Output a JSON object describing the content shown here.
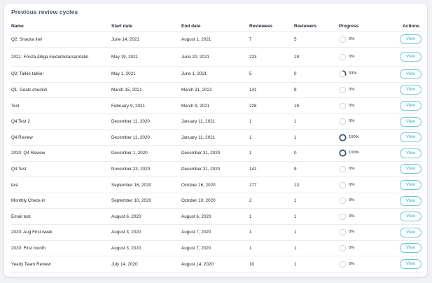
{
  "section": {
    "title": "Previous review cycles"
  },
  "columns": {
    "name": "Name",
    "start": "Start date",
    "end": "End date",
    "reviewees": "Reviewees",
    "reviewers": "Reviewers",
    "progress": "Progress",
    "actions": "Actions"
  },
  "view_label": "View",
  "colors": {
    "accent": "#3bb0c2",
    "ring_track": "#d5d8dc",
    "ring_fill": "#3d5568"
  },
  "rows": [
    {
      "name": "Q2: Snacka lite!",
      "start": "June 14, 2021",
      "end": "August 1, 2021",
      "reviewees": "7",
      "reviewers": "5",
      "progress": "0%",
      "progress_value": 0
    },
    {
      "name": "2021: Första årliga medarbetarsamtalet",
      "start": "May 19, 2021",
      "end": "June 20, 2021",
      "reviewees": "223",
      "reviewers": "19",
      "progress": "0%",
      "progress_value": 0
    },
    {
      "name": "Q2: Talkie talkie!",
      "start": "May 1, 2021",
      "end": "June 1, 2021",
      "reviewees": "5",
      "reviewers": "0",
      "progress": "33%",
      "progress_value": 33
    },
    {
      "name": "Q1: Goals checkin",
      "start": "March 15, 2021",
      "end": "March 31, 2021",
      "reviewees": "141",
      "reviewers": "9",
      "progress": "0%",
      "progress_value": 0
    },
    {
      "name": "Test",
      "start": "February 9, 2021",
      "end": "March 9, 2021",
      "reviewees": "228",
      "reviewers": "19",
      "progress": "0%",
      "progress_value": 0
    },
    {
      "name": "Q4 Test 2",
      "start": "December 11, 2020",
      "end": "January 11, 2021",
      "reviewees": "1",
      "reviewers": "1",
      "progress": "0%",
      "progress_value": 0
    },
    {
      "name": "Q4 Review",
      "start": "December 11, 2020",
      "end": "January 11, 2021",
      "reviewees": "1",
      "reviewers": "1",
      "progress": "100%",
      "progress_value": 100
    },
    {
      "name": "2020: Q4 Review",
      "start": "December 1, 2020",
      "end": "December 31, 2020",
      "reviewees": "1",
      "reviewers": "0",
      "progress": "100%",
      "progress_value": 100
    },
    {
      "name": "Q4 Test",
      "start": "November 23, 2020",
      "end": "December 31, 2020",
      "reviewees": "141",
      "reviewers": "9",
      "progress": "0%",
      "progress_value": 0
    },
    {
      "name": "test",
      "start": "September 16, 2020",
      "end": "October 16, 2020",
      "reviewees": "177",
      "reviewers": "13",
      "progress": "0%",
      "progress_value": 0
    },
    {
      "name": "Monthly Check-in",
      "start": "September 10, 2020",
      "end": "October 10, 2020",
      "reviewees": "2",
      "reviewers": "1",
      "progress": "0%",
      "progress_value": 0
    },
    {
      "name": "Email test",
      "start": "August 6, 2020",
      "end": "August 6, 2020",
      "reviewees": "1",
      "reviewers": "1",
      "progress": "0%",
      "progress_value": 0
    },
    {
      "name": "2020: Aug First week",
      "start": "August 3, 2020",
      "end": "August 7, 2020",
      "reviewees": "1",
      "reviewers": "1",
      "progress": "0%",
      "progress_value": 0
    },
    {
      "name": "2020: First month",
      "start": "August 3, 2020",
      "end": "August 7, 2020",
      "reviewees": "1",
      "reviewers": "1",
      "progress": "0%",
      "progress_value": 0
    },
    {
      "name": "Yearly Team Review",
      "start": "July 14, 2020",
      "end": "August 14, 2020",
      "reviewees": "10",
      "reviewers": "1",
      "progress": "0%",
      "progress_value": 0
    }
  ]
}
